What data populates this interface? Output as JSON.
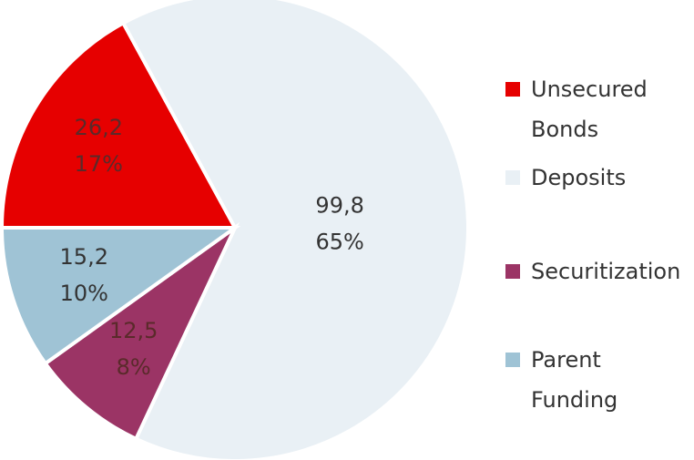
{
  "chart_data": {
    "type": "pie",
    "categories": [
      "Unsecured Bonds",
      "Deposits",
      "Securitization",
      "Parent Funding"
    ],
    "values": [
      26.2,
      99.8,
      12.5,
      15.2
    ],
    "value_labels": [
      "26,2",
      "99,8",
      "12,5",
      "15,2"
    ],
    "percentages": [
      17,
      65,
      8,
      10
    ],
    "percentage_labels": [
      "17%",
      "65%",
      "8%",
      "10%"
    ],
    "colors": [
      "#e60000",
      "#e9f0f5",
      "#9b3465",
      "#9fc3d5"
    ],
    "legend": "right"
  }
}
